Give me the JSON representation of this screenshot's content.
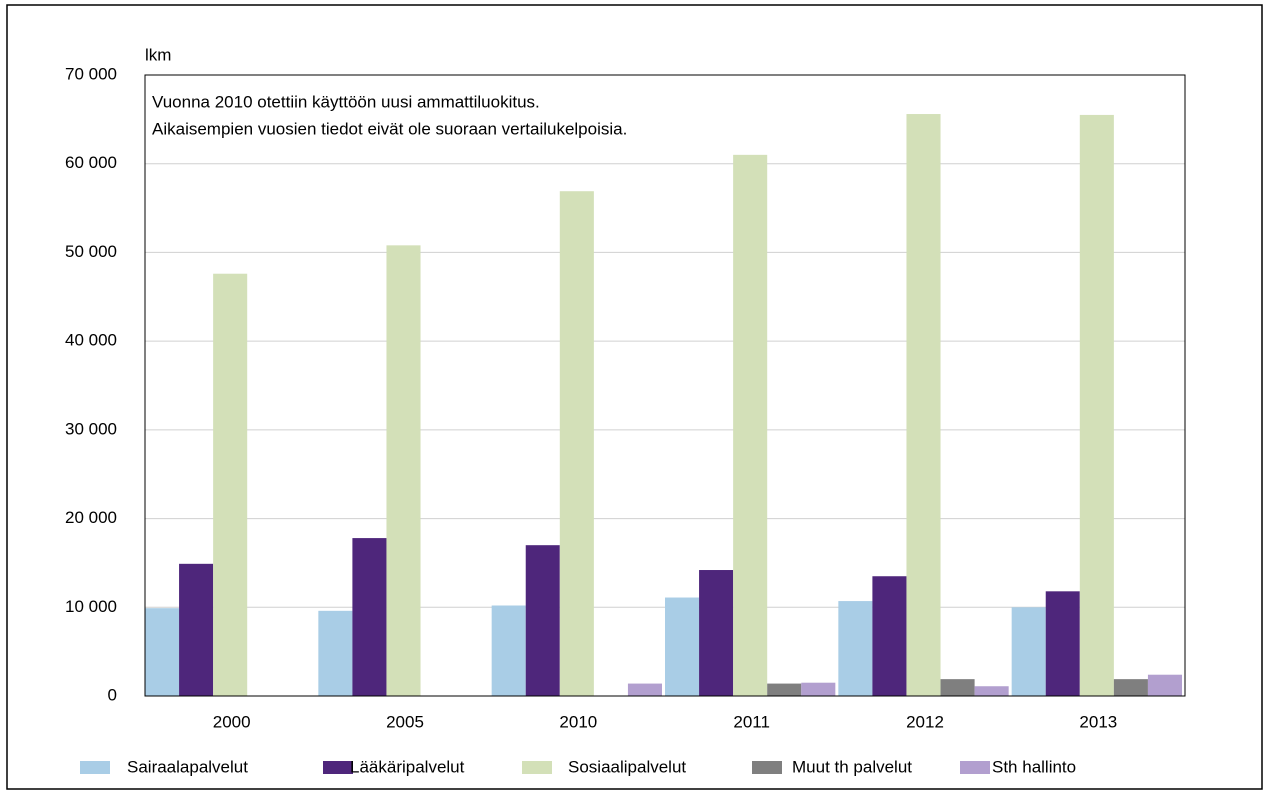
{
  "chart_data": {
    "type": "bar",
    "y_axis_label": "lkm",
    "annotations": [
      "Vuonna 2010 otettiin käyttöön uusi ammattiluokitus.",
      "Aikaisempien vuosien tiedot eivät ole suoraan vertailukelpoisia."
    ],
    "categories": [
      "2000",
      "2005",
      "2010",
      "2011",
      "2012",
      "2013"
    ],
    "series": [
      {
        "name": "Sairaalapalvelut",
        "color": "#a9cde6",
        "values": [
          9900,
          9600,
          10200,
          11100,
          10700,
          10000
        ]
      },
      {
        "name": "Lääkäripalvelut",
        "color": "#4e267b",
        "values": [
          14900,
          17800,
          17000,
          14200,
          13500,
          11800
        ]
      },
      {
        "name": "Sosiaalipalvelut",
        "color": "#d3e0b8",
        "values": [
          47600,
          50800,
          56900,
          61000,
          65600,
          65500
        ]
      },
      {
        "name": "Muut th palvelut",
        "color": "#7f7f7f",
        "values": [
          null,
          null,
          null,
          1400,
          1900,
          1900
        ]
      },
      {
        "name": "Sth hallinto",
        "color": "#b29fcf",
        "values": [
          null,
          null,
          1400,
          1500,
          1100,
          2400
        ]
      }
    ],
    "ylim": [
      0,
      70000
    ],
    "yticks": [
      0,
      {
        "value": 10000,
        "label": "10 000"
      },
      {
        "value": 20000,
        "label": "20 000"
      },
      {
        "value": 30000,
        "label": "30 000"
      },
      {
        "value": 40000,
        "label": "40 000"
      },
      {
        "value": 50000,
        "label": "50 000"
      },
      {
        "value": 60000,
        "label": "60 000"
      },
      {
        "value": 70000,
        "label": "70 000"
      }
    ],
    "grid": true
  }
}
